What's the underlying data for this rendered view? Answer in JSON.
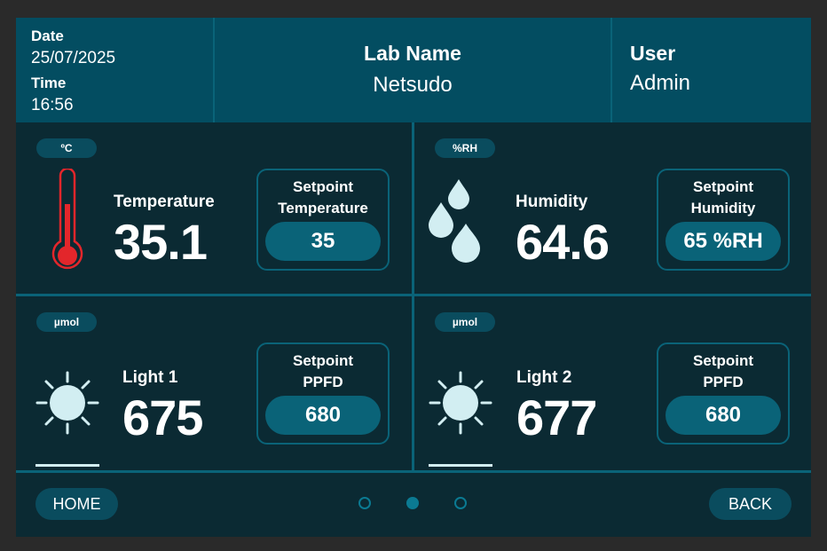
{
  "header": {
    "date_label": "Date",
    "date_value": "25/07/2025",
    "time_label": "Time",
    "time_value": "16:56",
    "lab_label": "Lab Name",
    "lab_value": "Netsudo",
    "user_label": "User",
    "user_value": "Admin"
  },
  "panels": {
    "temperature": {
      "unit": "ºC",
      "label": "Temperature",
      "value": "35.1",
      "setpoint_title_1": "Setpoint",
      "setpoint_title_2": "Temperature",
      "setpoint_value": "35",
      "icon": "thermometer-icon"
    },
    "humidity": {
      "unit": "%RH",
      "label": "Humidity",
      "value": "64.6",
      "setpoint_title_1": "Setpoint",
      "setpoint_title_2": "Humidity",
      "setpoint_value": "65 %RH",
      "icon": "water-drops-icon"
    },
    "light1": {
      "unit": "µmol",
      "label": "Light 1",
      "value": "675",
      "setpoint_title_1": "Setpoint",
      "setpoint_title_2": "PPFD",
      "setpoint_value": "680",
      "icon": "sun-icon"
    },
    "light2": {
      "unit": "µmol",
      "label": "Light 2",
      "value": "677",
      "setpoint_title_1": "Setpoint",
      "setpoint_title_2": "PPFD",
      "setpoint_value": "680",
      "icon": "sun-icon"
    }
  },
  "footer": {
    "home_label": "HOME",
    "back_label": "BACK",
    "pagination": {
      "pages": 3,
      "active": 2
    }
  },
  "colors": {
    "background": "#0b2a33",
    "header": "#034d61",
    "accent": "#0a6378",
    "thermometer": "#e3262b",
    "icon_light": "#d2eef2"
  }
}
